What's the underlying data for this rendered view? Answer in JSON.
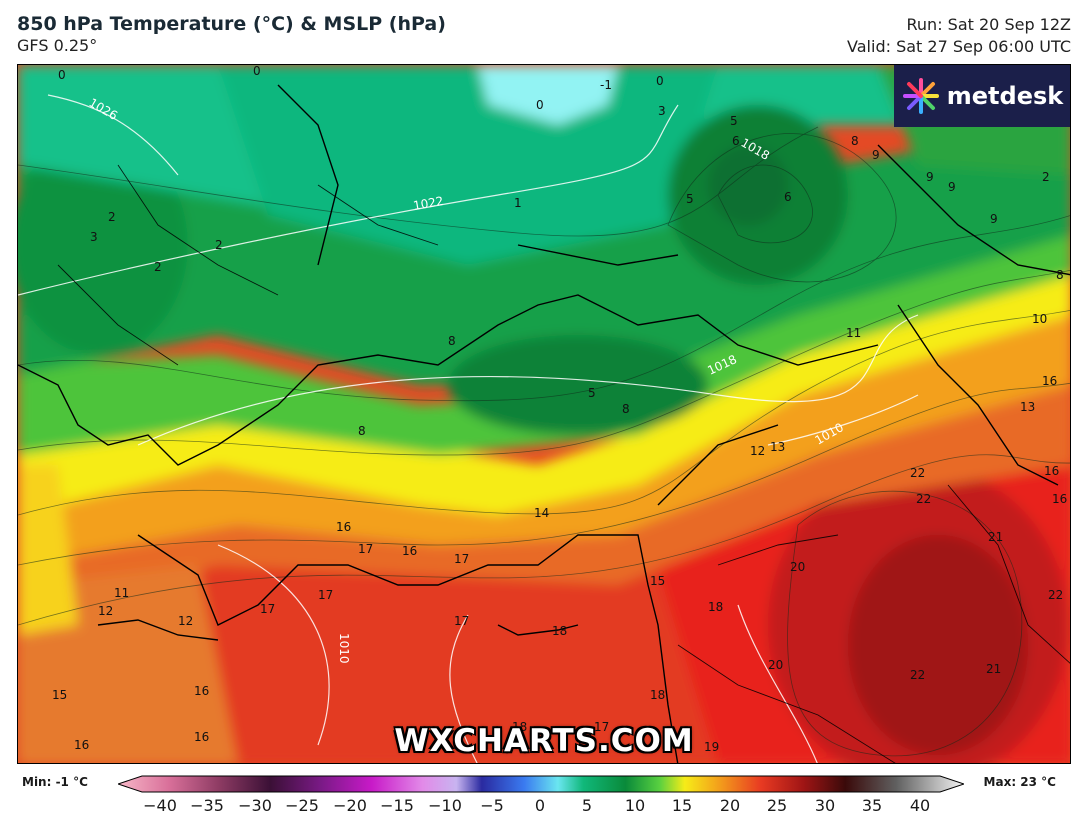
{
  "header": {
    "title": "850 hPa Temperature (°C) & MSLP (hPa)",
    "model": "GFS 0.25°",
    "run": "Run: Sat 20 Sep 12Z",
    "valid": "Valid: Sat 27 Sep 06:00 UTC"
  },
  "branding": {
    "logo": "metdesk",
    "watermark": "WXCHARTS.COM"
  },
  "legend": {
    "min": "Min: -1 °C",
    "max": "Max: 23 °C",
    "ticks": [
      "−40",
      "−35",
      "−30",
      "−25",
      "−20",
      "−15",
      "−10",
      "−5",
      "0",
      "5",
      "10",
      "15",
      "20",
      "25",
      "30",
      "35",
      "40"
    ]
  },
  "isobar_labels": [
    "1026",
    "1022",
    "1018",
    "1018",
    "1010",
    "1010"
  ],
  "temperature_labels": [
    "0",
    "0",
    "-1",
    "0",
    "0",
    "3",
    "5",
    "6",
    "6",
    "5",
    "8",
    "9",
    "9",
    "2",
    "9",
    "9",
    "8",
    "2",
    "2",
    "2",
    "3",
    "1",
    "8",
    "5",
    "8",
    "11",
    "10",
    "16",
    "13",
    "16",
    "16",
    "8",
    "12",
    "13",
    "14",
    "22",
    "22",
    "21",
    "22",
    "16",
    "17",
    "16",
    "17",
    "11",
    "12",
    "12",
    "17",
    "17",
    "17",
    "18",
    "15",
    "18",
    "20",
    "20",
    "22",
    "21",
    "15",
    "16",
    "16",
    "16",
    "18",
    "17",
    "18",
    "19"
  ],
  "colors": {
    "cold_cyan": "#8ff3f3",
    "teal_green": "#13c28a",
    "green": "#0f9b45",
    "dark_green": "#087a33",
    "light_green": "#43c23a",
    "yellow": "#f6ec18",
    "orange": "#f3a01b",
    "orange_red": "#e86a28",
    "red": "#e8221f",
    "dark_red": "#a41616"
  }
}
